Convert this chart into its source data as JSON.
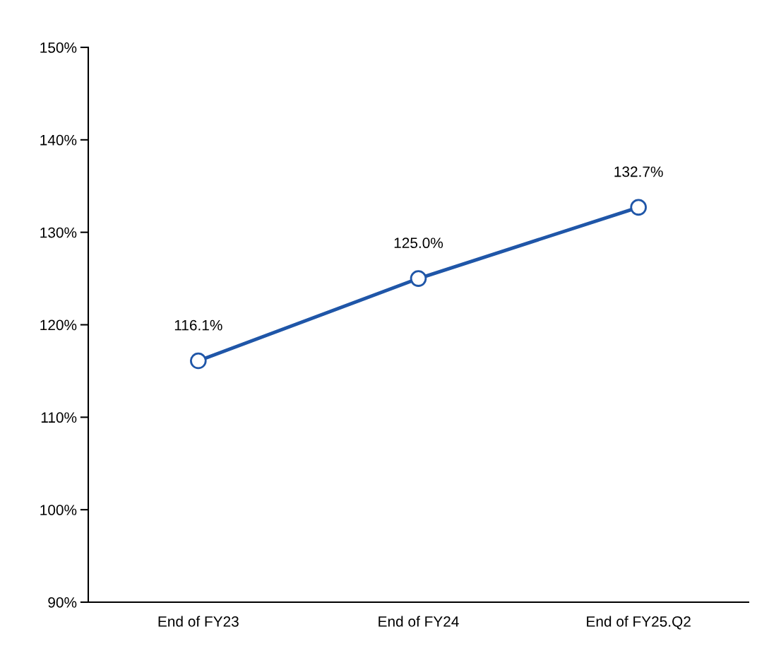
{
  "chart_data": {
    "type": "line",
    "categories": [
      "End of FY23",
      "End of FY24",
      "End of FY25.Q2"
    ],
    "series": [
      {
        "color": "#1f56a8",
        "values": [
          116.1,
          125.0,
          132.7
        ],
        "value_labels": [
          "116.1%",
          "125.0%",
          "132.7%"
        ]
      }
    ],
    "ylim": [
      90,
      150
    ],
    "yticks": [
      {
        "value": 90,
        "label": "90%"
      },
      {
        "value": 100,
        "label": "100%"
      },
      {
        "value": 110,
        "label": "110%"
      },
      {
        "value": 120,
        "label": "120%"
      },
      {
        "value": 130,
        "label": "130%"
      },
      {
        "value": 140,
        "label": "140%"
      },
      {
        "value": 150,
        "label": "150%"
      }
    ],
    "marker": "circle",
    "line_style": "solid",
    "grid": false,
    "legend": false
  }
}
